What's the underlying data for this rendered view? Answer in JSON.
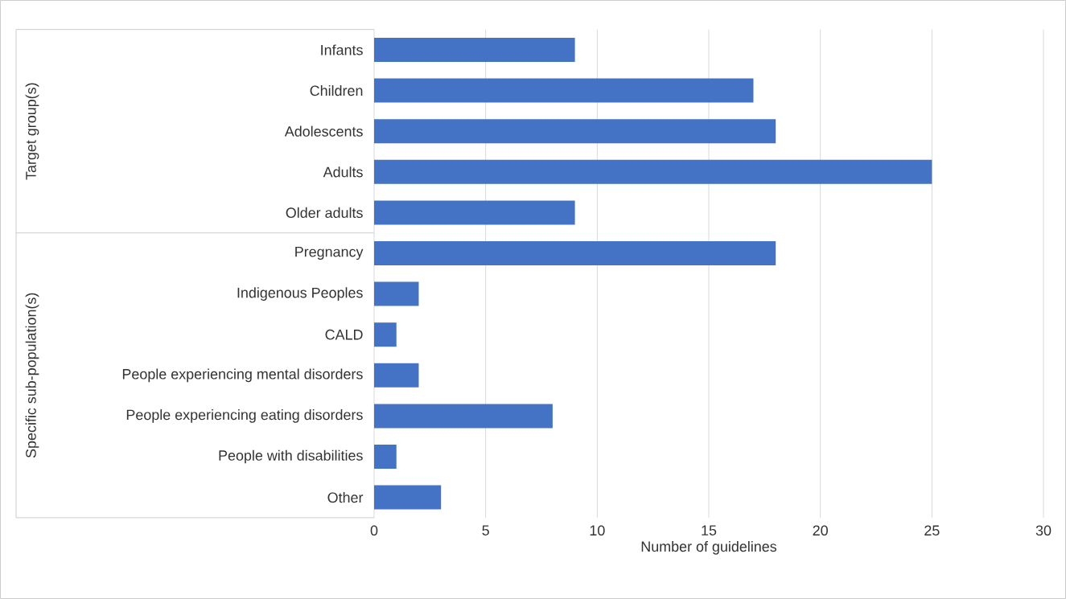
{
  "chart_data": {
    "type": "bar",
    "orientation": "horizontal",
    "xlabel": "Number of guidelines",
    "categories": [
      "Infants",
      "Children",
      "Adolescents",
      "Adults",
      "Older adults",
      "Pregnancy",
      "Indigenous Peoples",
      "CALD",
      "People experiencing mental disorders",
      "People experiencing eating disorders",
      "People with disabilities",
      "Other"
    ],
    "values": [
      9,
      17,
      18,
      25,
      9,
      18,
      2,
      1,
      2,
      8,
      1,
      3
    ],
    "color": "#4472c4",
    "xlim": [
      0,
      30
    ],
    "xticks": [
      0,
      5,
      10,
      15,
      20,
      25,
      30
    ],
    "grid": "x",
    "annotations": [
      "Target group(s)",
      "Specific sub-population(s)"
    ]
  }
}
